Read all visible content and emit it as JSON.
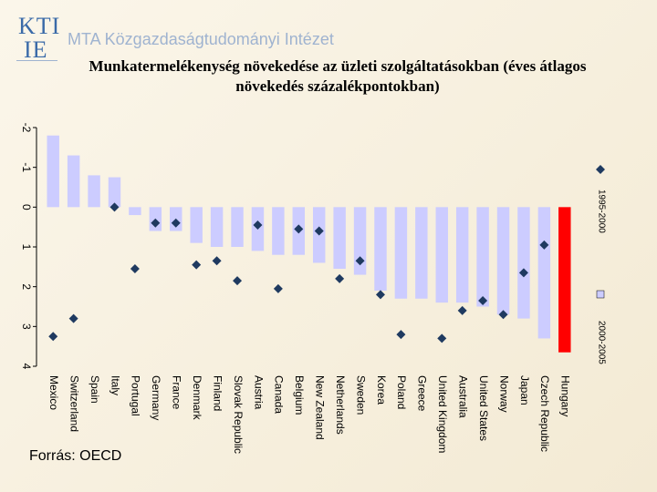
{
  "logo": [
    "KTI",
    "IE"
  ],
  "header": "MTA Közgazdaságtudományi Intézet",
  "source": "Forrás: OECD",
  "chart_data": {
    "type": "bar",
    "orientation": "rotated",
    "title": "Munkatermelékenység növekedése az üzleti szolgáltatásokban (éves átlagos növekedés százalékpontokban)",
    "categories": [
      "Mexico",
      "Switzerland",
      "Spain",
      "Italy",
      "Portugal",
      "Germany",
      "France",
      "Denmark",
      "Finland",
      "Slovak Republic",
      "Austria",
      "Canada",
      "Belgium",
      "New Zealand",
      "Netherlands",
      "Sweden",
      "Korea",
      "Poland",
      "Greece",
      "United Kingdom",
      "Australia",
      "United States",
      "Norway",
      "Japan",
      "Czech Republic",
      "Hungary"
    ],
    "series": [
      {
        "name": "1995-2000",
        "mark": "diamond",
        "color": "#1f3a60",
        "values": [
          3.25,
          2.8,
          null,
          0.0,
          1.55,
          0.4,
          0.4,
          1.45,
          1.35,
          1.85,
          0.45,
          2.05,
          0.55,
          0.6,
          1.8,
          1.35,
          2.2,
          3.2,
          null,
          3.3,
          2.6,
          2.35,
          2.7,
          1.65,
          0.95,
          null
        ]
      },
      {
        "name": "2000-2005",
        "mark": "bar",
        "color": "#ccccff",
        "colors": [
          "#ccccff",
          "#ccccff",
          "#ccccff",
          "#ccccff",
          "#ccccff",
          "#ccccff",
          "#ccccff",
          "#ccccff",
          "#ccccff",
          "#ccccff",
          "#ccccff",
          "#ccccff",
          "#ccccff",
          "#ccccff",
          "#ccccff",
          "#ccccff",
          "#ccccff",
          "#ccccff",
          "#ccccff",
          "#ccccff",
          "#ccccff",
          "#ccccff",
          "#ccccff",
          "#ccccff",
          "#ccccff",
          "#ff0000"
        ],
        "values": [
          -1.8,
          -1.3,
          -0.8,
          -0.75,
          0.2,
          0.6,
          0.6,
          0.9,
          1.0,
          1.0,
          1.1,
          1.2,
          1.2,
          1.4,
          1.55,
          1.7,
          2.1,
          2.3,
          2.3,
          2.4,
          2.4,
          2.5,
          2.7,
          2.8,
          3.3,
          3.65
        ]
      }
    ],
    "ylim": [
      -2,
      4
    ],
    "yticks": [
      -2,
      -1,
      0,
      1,
      2,
      3,
      4
    ]
  }
}
